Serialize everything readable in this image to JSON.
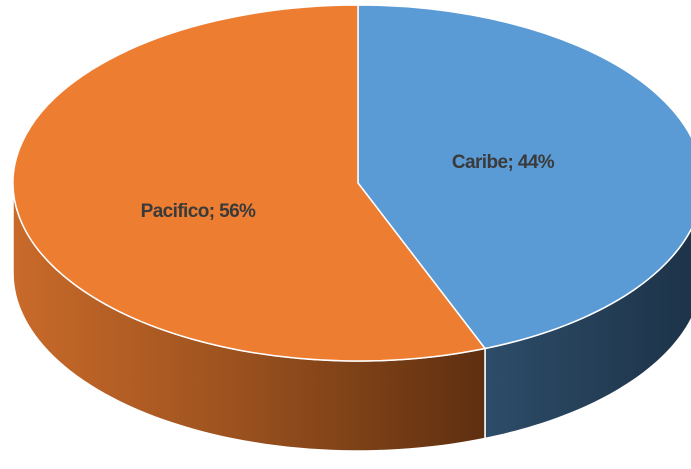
{
  "chart_data": {
    "type": "pie",
    "style": "3d",
    "legend": "none",
    "slices": [
      {
        "category": "Caribe",
        "value": 44,
        "data_label": "Caribe; 44%",
        "color": "#5b9bd5",
        "side_color": "#243e55"
      },
      {
        "category": "Pacifico",
        "value": 56,
        "data_label": "Pacifico; 56%",
        "color": "#ed7d31",
        "side_color": "#9a5020"
      }
    ]
  }
}
